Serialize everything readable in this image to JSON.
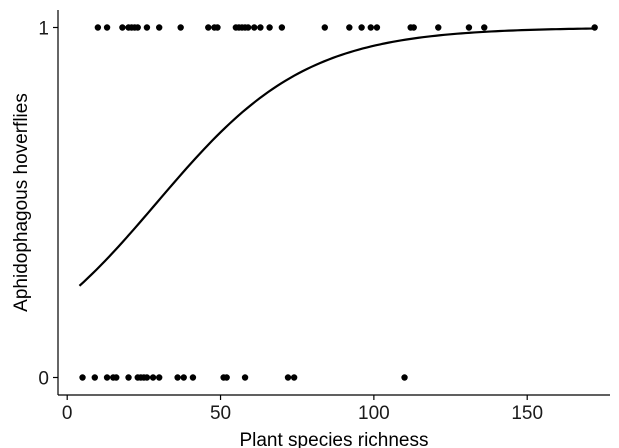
{
  "chart_data": {
    "type": "scatter",
    "xlabel": "Plant species richness",
    "ylabel": "Aphidophagous hoverflies",
    "xlim": [
      -3,
      177
    ],
    "ylim": [
      -0.05,
      1.05
    ],
    "x_ticks": [
      0,
      50,
      100,
      150
    ],
    "y_ticks": [
      0,
      1
    ],
    "grid": false,
    "series": [
      {
        "type": "scatter",
        "points": [
          {
            "x": 10,
            "y": 1
          },
          {
            "x": 13,
            "y": 1
          },
          {
            "x": 18,
            "y": 1
          },
          {
            "x": 20,
            "y": 1
          },
          {
            "x": 21,
            "y": 1
          },
          {
            "x": 22,
            "y": 1
          },
          {
            "x": 23,
            "y": 1
          },
          {
            "x": 26,
            "y": 1
          },
          {
            "x": 30,
            "y": 1
          },
          {
            "x": 37,
            "y": 1
          },
          {
            "x": 46,
            "y": 1
          },
          {
            "x": 48,
            "y": 1
          },
          {
            "x": 49,
            "y": 1
          },
          {
            "x": 55,
            "y": 1
          },
          {
            "x": 56,
            "y": 1
          },
          {
            "x": 57,
            "y": 1
          },
          {
            "x": 58,
            "y": 1
          },
          {
            "x": 59,
            "y": 1
          },
          {
            "x": 61,
            "y": 1
          },
          {
            "x": 63,
            "y": 1
          },
          {
            "x": 66,
            "y": 1
          },
          {
            "x": 70,
            "y": 1
          },
          {
            "x": 84,
            "y": 1
          },
          {
            "x": 92,
            "y": 1
          },
          {
            "x": 96,
            "y": 1
          },
          {
            "x": 99,
            "y": 1
          },
          {
            "x": 101,
            "y": 1
          },
          {
            "x": 112,
            "y": 1
          },
          {
            "x": 113,
            "y": 1
          },
          {
            "x": 121,
            "y": 1
          },
          {
            "x": 131,
            "y": 1
          },
          {
            "x": 136,
            "y": 1
          },
          {
            "x": 172,
            "y": 1
          },
          {
            "x": 5,
            "y": 0
          },
          {
            "x": 9,
            "y": 0
          },
          {
            "x": 13,
            "y": 0
          },
          {
            "x": 15,
            "y": 0
          },
          {
            "x": 16,
            "y": 0
          },
          {
            "x": 20,
            "y": 0
          },
          {
            "x": 23,
            "y": 0
          },
          {
            "x": 24,
            "y": 0
          },
          {
            "x": 25,
            "y": 0
          },
          {
            "x": 26,
            "y": 0
          },
          {
            "x": 28,
            "y": 0
          },
          {
            "x": 30,
            "y": 0
          },
          {
            "x": 36,
            "y": 0
          },
          {
            "x": 38,
            "y": 0
          },
          {
            "x": 41,
            "y": 0
          },
          {
            "x": 51,
            "y": 0
          },
          {
            "x": 52,
            "y": 0
          },
          {
            "x": 58,
            "y": 0
          },
          {
            "x": 72,
            "y": 0
          },
          {
            "x": 74,
            "y": 0
          },
          {
            "x": 110,
            "y": 0
          }
        ]
      },
      {
        "type": "line",
        "curve": "logistic",
        "x_range": [
          4,
          172
        ],
        "intercept": -1.2,
        "slope": 0.041
      }
    ]
  }
}
